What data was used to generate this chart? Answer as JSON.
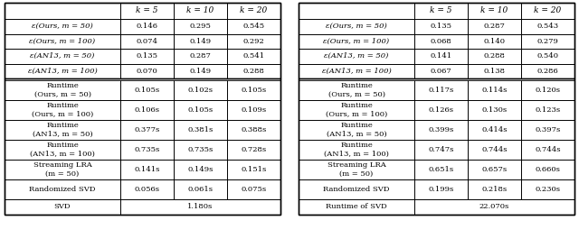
{
  "left_table": {
    "header": [
      "",
      "k = 5",
      "k = 10",
      "k = 20"
    ],
    "epsilon_rows": [
      [
        "ε(Ours, m = 50)",
        "0.146",
        "0.295",
        "0.545"
      ],
      [
        "ε(Ours, m = 100)",
        "0.074",
        "0.149",
        "0.292"
      ],
      [
        "ε(AN13, m = 50)",
        "0.135",
        "0.287",
        "0.541"
      ],
      [
        "ε(AN13, m = 100)",
        "0.070",
        "0.149",
        "0.288"
      ]
    ],
    "runtime_rows": [
      [
        "Runtime\n(Ours, m = 50)",
        "0.105s",
        "0.102s",
        "0.105s"
      ],
      [
        "Runtime\n(Ours, m = 100)",
        "0.106s",
        "0.105s",
        "0.109s"
      ],
      [
        "Runtime\n(AN13, m = 50)",
        "0.377s",
        "0.381s",
        "0.388s"
      ],
      [
        "Runtime\n(AN13, m = 100)",
        "0.735s",
        "0.735s",
        "0.728s"
      ],
      [
        "Streaming LRA\n(m = 50)",
        "0.141s",
        "0.149s",
        "0.151s"
      ],
      [
        "Randomized SVD",
        "0.056s",
        "0.061s",
        "0.075s"
      ]
    ],
    "svd_row": [
      "SVD",
      "1.180s"
    ]
  },
  "right_table": {
    "header": [
      "",
      "k = 5",
      "k = 10",
      "k = 20"
    ],
    "epsilon_rows": [
      [
        "ε(Ours, m = 50)",
        "0.135",
        "0.287",
        "0.543"
      ],
      [
        "ε(Ours, m = 100)",
        "0.068",
        "0.140",
        "0.279"
      ],
      [
        "ε(AN13, m = 50)",
        "0.141",
        "0.288",
        "0.540"
      ],
      [
        "ε(AN13, m = 100)",
        "0.067",
        "0.138",
        "0.286"
      ]
    ],
    "runtime_rows": [
      [
        "Runtime\n(Ours, m = 50)",
        "0.117s",
        "0.114s",
        "0.120s"
      ],
      [
        "Runtime\n(Ours, m = 100)",
        "0.126s",
        "0.130s",
        "0.123s"
      ],
      [
        "Runtime\n(AN13, m = 50)",
        "0.399s",
        "0.414s",
        "0.397s"
      ],
      [
        "Runtime\n(AN13, m = 100)",
        "0.747s",
        "0.744s",
        "0.744s"
      ],
      [
        "Streaming LRA\n(m = 50)",
        "0.651s",
        "0.657s",
        "0.660s"
      ],
      [
        "Randomized SVD",
        "0.199s",
        "0.218s",
        "0.230s"
      ]
    ],
    "svd_row": [
      "Runtime of SVD",
      "22.070s"
    ]
  },
  "font_size": 6.0,
  "header_font_size": 6.5,
  "fig_width": 6.4,
  "fig_height": 2.75,
  "dpi": 100
}
